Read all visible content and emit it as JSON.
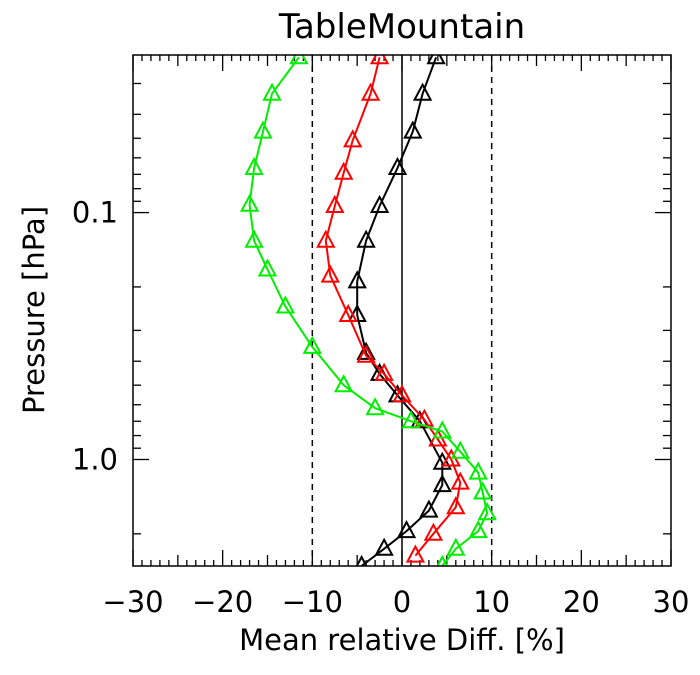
{
  "chart_data": {
    "type": "line",
    "title": "TableMountain",
    "xlabel": "Mean relative Diff. [%]",
    "ylabel": "Pressure [hPa]",
    "xlim": [
      -30,
      30
    ],
    "ylim": [
      2.7,
      0.023
    ],
    "yscale": "log",
    "x_ticks": [
      -30,
      -20,
      -10,
      0,
      10,
      20,
      30
    ],
    "x_tick_labels": [
      "−30",
      "−20",
      "−10",
      "0",
      "10",
      "20",
      "30"
    ],
    "y_ticks": [
      0.1,
      1.0
    ],
    "y_tick_labels": [
      "0.1",
      "1.0"
    ],
    "reference_lines": [
      {
        "x": -10,
        "style": "dashed"
      },
      {
        "x": 0,
        "style": "solid"
      },
      {
        "x": 10,
        "style": "dashed"
      }
    ],
    "marker": "open-triangle",
    "series": [
      {
        "color": "#000000",
        "points": [
          {
            "x": 3.8,
            "y": 0.0235
          },
          {
            "x": 2.3,
            "y": 0.033
          },
          {
            "x": 1.2,
            "y": 0.047
          },
          {
            "x": -0.5,
            "y": 0.066
          },
          {
            "x": -2.5,
            "y": 0.094
          },
          {
            "x": -4.0,
            "y": 0.13
          },
          {
            "x": -5.0,
            "y": 0.19
          },
          {
            "x": -5.0,
            "y": 0.26
          },
          {
            "x": -4.0,
            "y": 0.37
          },
          {
            "x": -2.5,
            "y": 0.45
          },
          {
            "x": -0.5,
            "y": 0.55
          },
          {
            "x": 2.0,
            "y": 0.7
          },
          {
            "x": 4.5,
            "y": 1.03
          },
          {
            "x": 4.5,
            "y": 1.27
          },
          {
            "x": 3.0,
            "y": 1.61
          },
          {
            "x": 0.5,
            "y": 1.95
          },
          {
            "x": -2.0,
            "y": 2.3
          },
          {
            "x": -4.5,
            "y": 2.7
          }
        ]
      },
      {
        "color": "#ff0000",
        "points": [
          {
            "x": -2.5,
            "y": 0.0235
          },
          {
            "x": -3.5,
            "y": 0.033
          },
          {
            "x": -5.5,
            "y": 0.051
          },
          {
            "x": -6.5,
            "y": 0.069
          },
          {
            "x": -7.5,
            "y": 0.094
          },
          {
            "x": -8.5,
            "y": 0.13
          },
          {
            "x": -8.0,
            "y": 0.18
          },
          {
            "x": -6.0,
            "y": 0.26
          },
          {
            "x": -4.0,
            "y": 0.38
          },
          {
            "x": -2.0,
            "y": 0.45
          },
          {
            "x": 0.0,
            "y": 0.55
          },
          {
            "x": 2.5,
            "y": 0.69
          },
          {
            "x": 4.0,
            "y": 0.83
          },
          {
            "x": 5.5,
            "y": 1.0
          },
          {
            "x": 6.5,
            "y": 1.24
          },
          {
            "x": 6.0,
            "y": 1.56
          },
          {
            "x": 3.5,
            "y": 2.0
          },
          {
            "x": 1.5,
            "y": 2.45
          }
        ]
      },
      {
        "color": "#00ee00",
        "points": [
          {
            "x": -11.5,
            "y": 0.0235
          },
          {
            "x": -14.5,
            "y": 0.033
          },
          {
            "x": -15.5,
            "y": 0.047
          },
          {
            "x": -16.5,
            "y": 0.066
          },
          {
            "x": -17.0,
            "y": 0.093
          },
          {
            "x": -16.5,
            "y": 0.13
          },
          {
            "x": -15.0,
            "y": 0.17
          },
          {
            "x": -13.0,
            "y": 0.24
          },
          {
            "x": -10.0,
            "y": 0.35
          },
          {
            "x": -6.5,
            "y": 0.5
          },
          {
            "x": -3.0,
            "y": 0.62
          },
          {
            "x": 1.0,
            "y": 0.7
          },
          {
            "x": 4.5,
            "y": 0.77
          },
          {
            "x": 6.5,
            "y": 0.93
          },
          {
            "x": 8.5,
            "y": 1.13
          },
          {
            "x": 9.0,
            "y": 1.36
          },
          {
            "x": 9.5,
            "y": 1.65
          },
          {
            "x": 8.5,
            "y": 1.95
          },
          {
            "x": 6.0,
            "y": 2.3
          },
          {
            "x": 4.5,
            "y": 2.7
          }
        ]
      }
    ]
  }
}
